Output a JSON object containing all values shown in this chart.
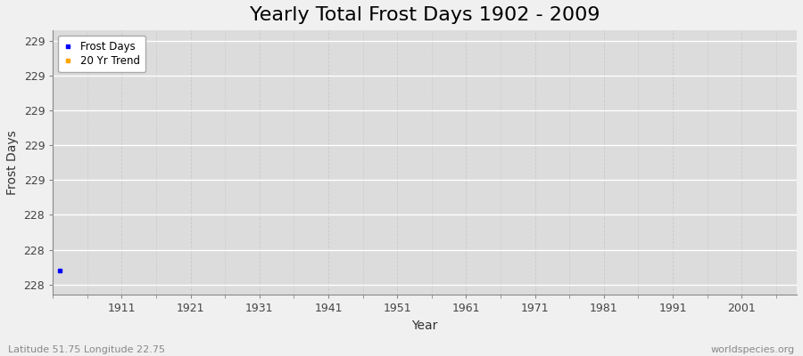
{
  "title": "Yearly Total Frost Days 1902 - 2009",
  "xlabel": "Year",
  "ylabel": "Frost Days",
  "subtitle_left": "Latitude 51.75 Longitude 22.75",
  "subtitle_right": "worldspecies.org",
  "data_year": 1902,
  "data_value": 228.08,
  "frost_days_color": "#0000ff",
  "trend_color": "#ffa500",
  "legend_labels": [
    "Frost Days",
    "20 Yr Trend"
  ],
  "ylim_min": 227.94,
  "ylim_max": 229.46,
  "ytick_values": [
    228.0,
    228.2,
    228.4,
    228.6,
    228.8,
    229.0,
    229.2,
    229.4
  ],
  "xtick_values": [
    1911,
    1921,
    1931,
    1941,
    1951,
    1961,
    1971,
    1981,
    1991,
    2001
  ],
  "xlim_min": 1901,
  "xlim_max": 2009,
  "plot_bg_color": "#dcdcdc",
  "fig_bg_color": "#f0f0f0",
  "grid_color_h": "#ffffff",
  "grid_color_v": "#c8c8c8",
  "title_fontsize": 16,
  "axis_label_fontsize": 10,
  "tick_label_fontsize": 9,
  "subtitle_fontsize": 8
}
